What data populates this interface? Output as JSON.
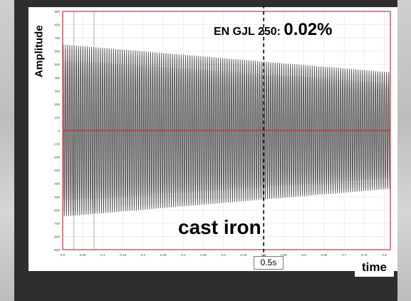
{
  "chart_data": {
    "type": "line",
    "title": "",
    "xlabel": "time",
    "ylabel": "Amplitude",
    "xlim": [
      0,
      0.815
    ],
    "ylim": [
      -900,
      900
    ],
    "x_ticks": [
      "0.0",
      "0.05",
      "0.1",
      "0.15",
      "0.2",
      "0.25",
      "0.3",
      "0.35",
      "0.4",
      "0.45",
      "0.5",
      "0.55",
      "0.6",
      "0.65",
      "0.7",
      "0.75",
      "0.8"
    ],
    "y_ticks": [
      "900",
      "800",
      "700",
      "600",
      "500",
      "400",
      "300",
      "200",
      "100",
      "0",
      "-100",
      "-200",
      "-300",
      "-400",
      "-500",
      "-600",
      "-700",
      "-800",
      "-900"
    ],
    "series": [
      {
        "envelope_start_amplitude": 650,
        "envelope_end_amplitude": 440,
        "t_start": 0.0,
        "t_end": 0.815
      }
    ],
    "marker": {
      "x": 0.5,
      "label": "0.5s"
    },
    "annotations": {
      "material": "EN GJL 250:",
      "damping": "0.02%",
      "label": "cast iron"
    },
    "colors": {
      "signal": "#555555",
      "signal_light": "#a8a8a8",
      "zero_line": "#b22222",
      "plot_border": "#e05060"
    }
  }
}
